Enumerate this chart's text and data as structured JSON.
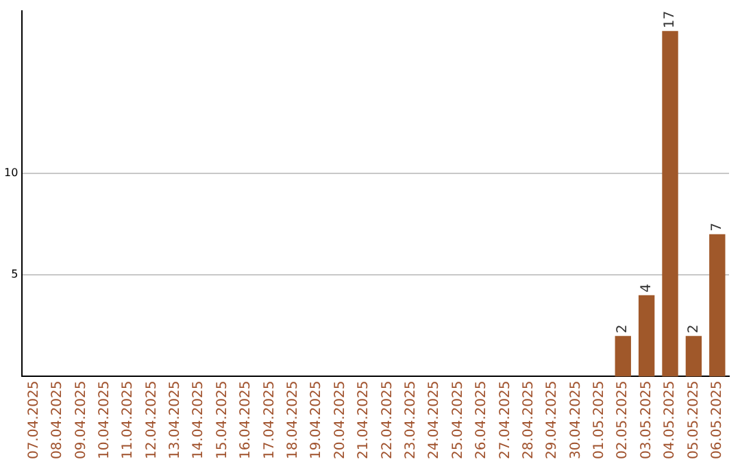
{
  "chart_data": {
    "type": "bar",
    "categories": [
      "07.04.2025",
      "08.04.2025",
      "09.04.2025",
      "10.04.2025",
      "11.04.2025",
      "12.04.2025",
      "13.04.2025",
      "14.04.2025",
      "15.04.2025",
      "16.04.2025",
      "17.04.2025",
      "18.04.2025",
      "19.04.2025",
      "20.04.2025",
      "21.04.2025",
      "22.04.2025",
      "23.04.2025",
      "24.04.2025",
      "25.04.2025",
      "26.04.2025",
      "27.04.2025",
      "28.04.2025",
      "29.04.2025",
      "30.04.2025",
      "01.05.2025",
      "02.05.2025",
      "03.05.2025",
      "04.05.2025",
      "05.05.2025",
      "06.05.2025"
    ],
    "values": [
      0,
      0,
      0,
      0,
      0,
      0,
      0,
      0,
      0,
      0,
      0,
      0,
      0,
      0,
      0,
      0,
      0,
      0,
      0,
      0,
      0,
      0,
      0,
      0,
      0,
      2,
      4,
      17,
      2,
      7
    ],
    "value_labels": [
      null,
      null,
      null,
      null,
      null,
      null,
      null,
      null,
      null,
      null,
      null,
      null,
      null,
      null,
      null,
      null,
      null,
      null,
      null,
      null,
      null,
      null,
      null,
      null,
      null,
      "2",
      "4",
      "17",
      "2",
      "7"
    ],
    "color": "#a0582a",
    "ylim": [
      0,
      18
    ],
    "yticks": [
      5,
      10
    ],
    "grid": "y",
    "legend": false
  }
}
